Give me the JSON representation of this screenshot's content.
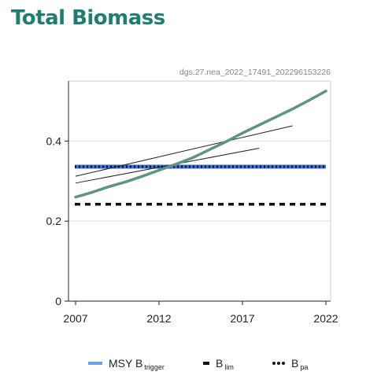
{
  "title": "Total Biomass",
  "watermark": "dgs.27.nea_2022_17491_202296153226",
  "legend": {
    "msy_main": "MSY B",
    "msy_sub": "trigger",
    "blim_main": "B",
    "blim_sub": "lim",
    "bpa_main": "B",
    "bpa_sub": "pa"
  },
  "colors": {
    "title": "#1f7d72",
    "main_series": "#5e9487",
    "msy_btrigger": "#3b70e0",
    "blim": "#111111",
    "bpa": "#111111",
    "retro": "#222222"
  },
  "chart_data": {
    "type": "line",
    "xlabel": "",
    "ylabel": "",
    "xlim": [
      2007,
      2022
    ],
    "ylim": [
      0,
      0.55
    ],
    "xticks": [
      2007,
      2012,
      2017,
      2022
    ],
    "yticks": [
      0,
      0.2,
      0.4
    ],
    "grid": "horizontal",
    "legend_position": "bottom",
    "series": [
      {
        "x": [
          2007,
          2008,
          2009,
          2010,
          2011,
          2012,
          2013,
          2014,
          2015,
          2016,
          2017,
          2018,
          2019,
          2020,
          2021,
          2022
        ],
        "values": [
          0.26,
          0.272,
          0.286,
          0.298,
          0.312,
          0.327,
          0.342,
          0.358,
          0.378,
          0.398,
          0.42,
          0.44,
          0.46,
          0.48,
          0.502,
          0.525
        ]
      },
      {
        "x": [
          2007,
          2020
        ],
        "values": [
          0.312,
          0.438
        ]
      },
      {
        "x": [
          2007,
          2018
        ],
        "values": [
          0.295,
          0.382
        ]
      }
    ],
    "reference_lines": [
      {
        "name": "MSY Btrigger",
        "value": 0.336,
        "style": "solid+dotted"
      },
      {
        "name": "Blim",
        "value": 0.242,
        "style": "dashed"
      },
      {
        "name": "Bpa",
        "value": 0.336,
        "style": "dotted"
      }
    ]
  }
}
